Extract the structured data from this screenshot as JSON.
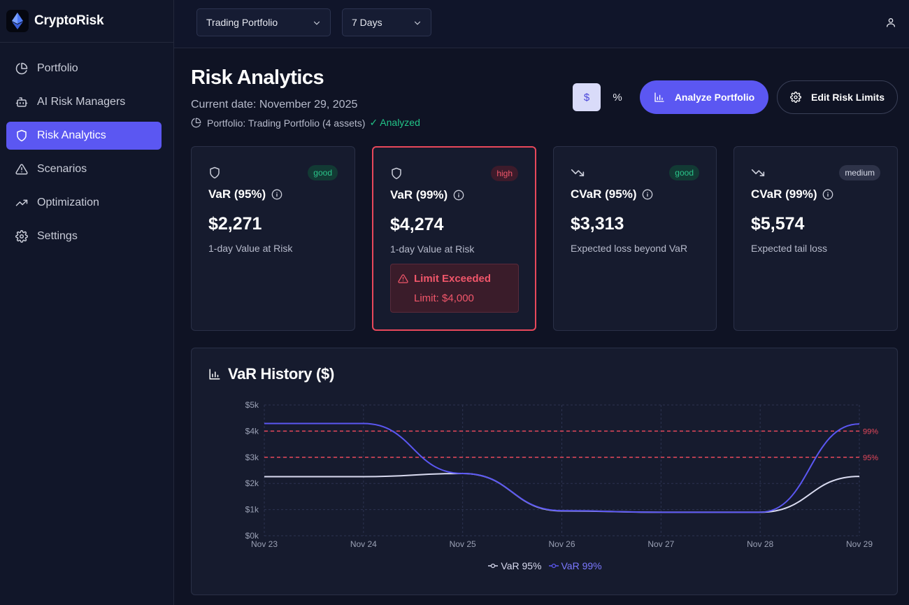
{
  "brand": {
    "name": "CryptoRisk"
  },
  "sidebar": {
    "items": [
      {
        "label": "Portfolio",
        "icon": "pie-chart-icon"
      },
      {
        "label": "AI Risk Managers",
        "icon": "bot-icon"
      },
      {
        "label": "Risk Analytics",
        "icon": "shield-icon",
        "active": true
      },
      {
        "label": "Scenarios",
        "icon": "warning-icon"
      },
      {
        "label": "Optimization",
        "icon": "trending-up-icon"
      },
      {
        "label": "Settings",
        "icon": "gear-icon"
      }
    ]
  },
  "topbar": {
    "portfolio_select": "Trading Portfolio",
    "period_select": "7 Days"
  },
  "header": {
    "title": "Risk Analytics",
    "date": "Current date: November 29, 2025",
    "portfolio": "Portfolio: Trading Portfolio (4 assets)",
    "analyzed": "✓ Analyzed",
    "toggle_dollar": "$",
    "toggle_percent": "%",
    "analyze_button": "Analyze Portfolio",
    "edit_limits_button": "Edit Risk Limits"
  },
  "cards": [
    {
      "title": "VaR (95%)",
      "badge": "good",
      "value": "$2,271",
      "sub": "1-day Value at Risk"
    },
    {
      "title": "VaR (99%)",
      "badge": "high",
      "value": "$4,274",
      "sub": "1-day Value at Risk",
      "alert_title": "Limit Exceeded",
      "alert_limit": "Limit: $4,000"
    },
    {
      "title": "CVaR (95%)",
      "badge": "good",
      "value": "$3,313",
      "sub": "Expected loss beyond VaR"
    },
    {
      "title": "CVaR (99%)",
      "badge": "medium",
      "value": "$5,574",
      "sub": "Expected tail loss"
    }
  ],
  "colors": {
    "accent": "#5b57f2",
    "good": "#2bc48a",
    "high": "#f0566a",
    "var95_line": "#d9dbf0",
    "var99_line": "#5b57f2"
  },
  "chart_data": {
    "type": "line",
    "title": "VaR History ($)",
    "categories": [
      "Nov 23",
      "Nov 24",
      "Nov 25",
      "Nov 26",
      "Nov 27",
      "Nov 28",
      "Nov 29"
    ],
    "ytick_labels": [
      "$0k",
      "$1k",
      "$2k",
      "$3k",
      "$4k",
      "$5k"
    ],
    "yticks": [
      0,
      1000,
      2000,
      3000,
      4000,
      5000
    ],
    "ylim": [
      0,
      5000
    ],
    "series": [
      {
        "name": "VaR 95%",
        "values": [
          2260,
          2260,
          2380,
          950,
          900,
          900,
          2271
        ]
      },
      {
        "name": "VaR 99%",
        "values": [
          4290,
          4290,
          2380,
          960,
          900,
          900,
          4274
        ]
      }
    ],
    "reference_lines": [
      {
        "label": "99%",
        "value": 4000
      },
      {
        "label": "95%",
        "value": 3000
      }
    ],
    "grid": true,
    "legend_position": "bottom-center"
  }
}
